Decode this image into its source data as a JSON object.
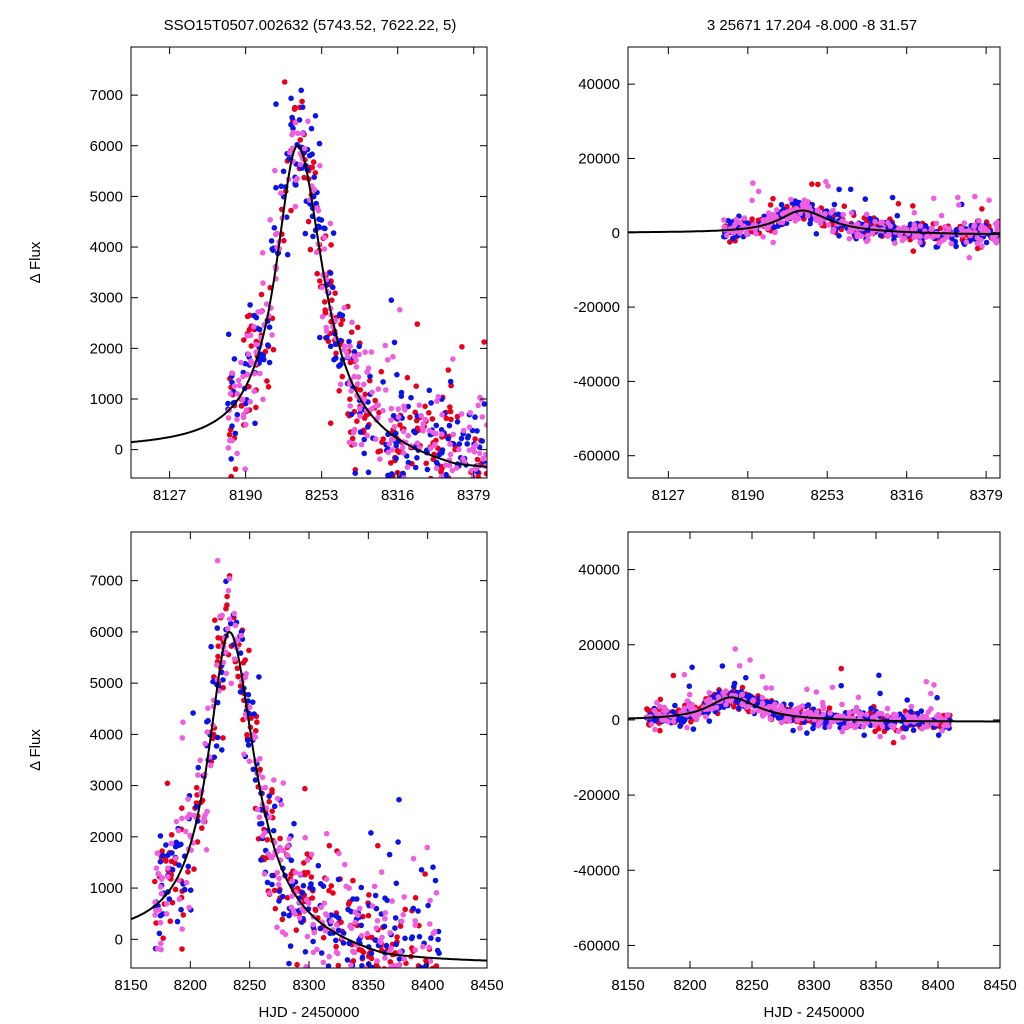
{
  "header": {
    "left_title": "SSO15T0507.002632 (5743.52, 7622.22,    5)",
    "right_title": "3   25671   17.204   -8.000   -8   31.57"
  },
  "colors": {
    "series_a": "#e8001c",
    "series_b": "#0a14e6",
    "series_c": "#ee5ee0",
    "model": "#000000"
  },
  "model_description": {
    "type": "peaked lightcurve",
    "peak_x": 8233,
    "peak_y": 6000
  },
  "chart_data": [
    {
      "id": "top-left",
      "type": "scatter",
      "ylabel": "Δ Flux",
      "xlabel": "",
      "xlim": [
        8095,
        8390
      ],
      "ylim": [
        -560,
        7950
      ],
      "xticks": [
        8127,
        8190,
        8253,
        8316,
        8379
      ],
      "yticks": [
        0,
        1000,
        2000,
        3000,
        4000,
        5000,
        6000,
        7000
      ],
      "series": [
        {
          "color_key": "series_a",
          "x_range": [
            8175,
            8390
          ],
          "peak": 6000
        },
        {
          "color_key": "series_b",
          "x_range": [
            8175,
            8390
          ],
          "peak": 6000
        },
        {
          "color_key": "series_c",
          "x_range": [
            8175,
            8390
          ],
          "peak": 6000
        }
      ],
      "model": {
        "x_range": [
          8095,
          8390
        ],
        "peak_x": 8233,
        "peak_y": 6000
      }
    },
    {
      "id": "top-right",
      "type": "scatter",
      "ylabel": "",
      "xlabel": "",
      "xlim": [
        8095,
        8390
      ],
      "ylim": [
        -66000,
        50000
      ],
      "xticks": [
        8127,
        8190,
        8253,
        8316,
        8379
      ],
      "yticks": [
        -60000,
        -40000,
        -20000,
        0,
        20000,
        40000
      ],
      "series": [
        {
          "color_key": "series_a",
          "x_range": [
            8170,
            8390
          ],
          "peak": 6000
        },
        {
          "color_key": "series_b",
          "x_range": [
            8170,
            8390
          ],
          "peak": 6000
        },
        {
          "color_key": "series_c",
          "x_range": [
            8170,
            8390
          ],
          "peak": 6000
        }
      ],
      "model": {
        "x_range": [
          8095,
          8390
        ],
        "peak_x": 8233,
        "peak_y": 6000
      }
    },
    {
      "id": "bottom-left",
      "type": "scatter",
      "ylabel": "Δ Flux",
      "xlabel": "HJD - 2450000",
      "xlim": [
        8150,
        8450
      ],
      "ylim": [
        -560,
        7950
      ],
      "xticks": [
        8150,
        8200,
        8250,
        8300,
        8350,
        8400,
        8450
      ],
      "yticks": [
        0,
        1000,
        2000,
        3000,
        4000,
        5000,
        6000,
        7000
      ],
      "series": [
        {
          "color_key": "series_a",
          "x_range": [
            8170,
            8410
          ],
          "peak": 6000
        },
        {
          "color_key": "series_b",
          "x_range": [
            8170,
            8410
          ],
          "peak": 6000
        },
        {
          "color_key": "series_c",
          "x_range": [
            8170,
            8410
          ],
          "peak": 6000
        }
      ],
      "model": {
        "x_range": [
          8150,
          8450
        ],
        "peak_x": 8233,
        "peak_y": 6000
      }
    },
    {
      "id": "bottom-right",
      "type": "scatter",
      "ylabel": "",
      "xlabel": "HJD - 2450000",
      "xlim": [
        8150,
        8450
      ],
      "ylim": [
        -66000,
        50000
      ],
      "xticks": [
        8150,
        8200,
        8250,
        8300,
        8350,
        8400,
        8450
      ],
      "yticks": [
        -60000,
        -40000,
        -20000,
        0,
        20000,
        40000
      ],
      "series": [
        {
          "color_key": "series_a",
          "x_range": [
            8165,
            8410
          ],
          "peak": 6000
        },
        {
          "color_key": "series_b",
          "x_range": [
            8165,
            8410
          ],
          "peak": 6000
        },
        {
          "color_key": "series_c",
          "x_range": [
            8165,
            8410
          ],
          "peak": 6000
        }
      ],
      "model": {
        "x_range": [
          8150,
          8450
        ],
        "peak_x": 8233,
        "peak_y": 6000
      }
    }
  ]
}
